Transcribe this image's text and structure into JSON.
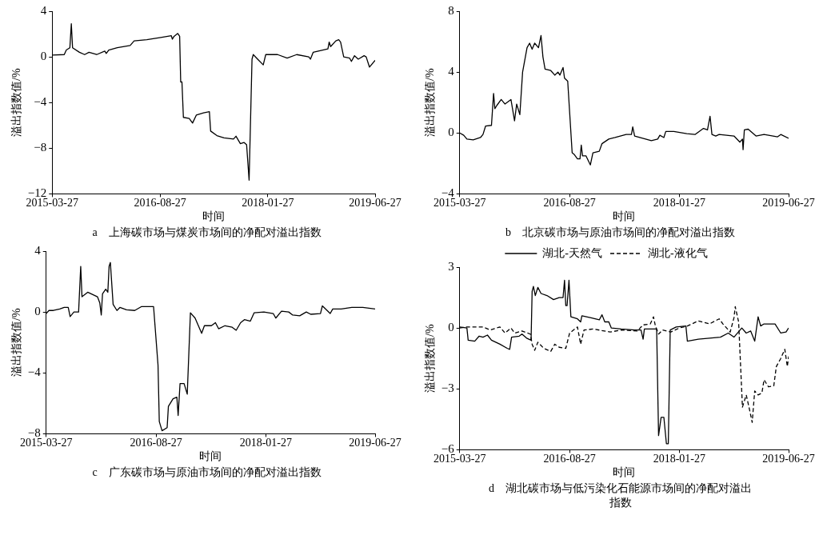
{
  "chart_data": [
    {
      "type": "line",
      "title": "a　上海碳市场与煤炭市场间的净配对溢出指数",
      "xlabel": "时间",
      "ylabel": "溢出指数值/%",
      "xlim": [
        "2015-03-27",
        "2019-06-27"
      ],
      "xticks": [
        "2015-03-27",
        "2016-08-27",
        "2018-01-27",
        "2019-06-27"
      ],
      "ylim": [
        -12,
        4
      ],
      "yticks": [
        -12,
        -8,
        -4,
        0,
        4
      ],
      "marker": "none",
      "series": [
        {
          "color": "#000000",
          "line_style": "solid",
          "x": [
            "2015-03-27",
            "2015-05-24",
            "2015-06-03",
            "2015-06-20",
            "2015-06-27",
            "2015-07-03",
            "2015-08-05",
            "2015-08-30",
            "2015-09-20",
            "2015-10-27",
            "2015-12-05",
            "2015-12-12",
            "2015-12-24",
            "2016-02-03",
            "2016-04-05",
            "2016-04-24",
            "2016-06-24",
            "2016-08-30",
            "2016-10-20",
            "2016-10-25",
            "2016-11-02",
            "2016-11-20",
            "2016-11-29",
            "2016-12-04",
            "2016-12-10",
            "2016-12-17",
            "2017-01-14",
            "2017-01-30",
            "2017-02-17",
            "2017-03-24",
            "2017-04-21",
            "2017-04-27",
            "2017-05-27",
            "2017-06-30",
            "2017-08-15",
            "2017-08-27",
            "2017-09-17",
            "2017-10-05",
            "2017-10-17",
            "2017-10-29",
            "2017-11-12",
            "2017-11-18",
            "2017-12-09",
            "2018-01-05",
            "2018-01-17",
            "2018-03-15",
            "2018-04-30",
            "2018-06-15",
            "2018-08-12",
            "2018-08-20",
            "2018-09-02",
            "2018-10-18",
            "2018-11-12",
            "2018-11-18",
            "2018-11-25",
            "2018-12-20",
            "2019-01-03",
            "2019-01-12",
            "2019-01-27",
            "2019-02-24",
            "2019-03-05",
            "2019-03-20",
            "2019-04-07",
            "2019-05-05",
            "2019-05-15",
            "2019-05-31",
            "2019-06-27"
          ],
          "values": [
            0.15,
            0.2,
            0.6,
            0.8,
            2.9,
            0.8,
            0.4,
            0.2,
            0.4,
            0.2,
            0.5,
            0.3,
            0.6,
            0.8,
            1.0,
            1.4,
            1.5,
            1.7,
            1.85,
            1.55,
            1.8,
            2.05,
            1.8,
            -2.2,
            -2.2,
            -5.3,
            -5.4,
            -5.8,
            -5.1,
            -4.9,
            -4.8,
            -6.5,
            -6.9,
            -7.1,
            -7.2,
            -6.95,
            -7.6,
            -7.5,
            -7.7,
            -10.8,
            -0.2,
            0.2,
            -0.2,
            -0.7,
            0.2,
            0.2,
            -0.1,
            0.2,
            0.0,
            -0.2,
            0.4,
            0.6,
            0.7,
            1.3,
            0.9,
            1.4,
            1.5,
            1.3,
            0.0,
            -0.1,
            -0.4,
            0.1,
            -0.2,
            0.1,
            0.0,
            -0.9,
            -0.3
          ]
        }
      ]
    },
    {
      "type": "line",
      "title": "b　北京碳市场与原油市场间的净配对溢出指数",
      "xlabel": "时间",
      "ylabel": "溢出指数值/%",
      "xlim": [
        "2015-03-27",
        "2019-06-27"
      ],
      "xticks": [
        "2015-03-27",
        "2016-08-27",
        "2018-01-27",
        "2019-06-27"
      ],
      "ylim": [
        -4,
        8
      ],
      "yticks": [
        -4,
        0,
        4,
        8
      ],
      "marker": "none",
      "series": [
        {
          "color": "#000000",
          "line_style": "solid",
          "x": [
            "2015-03-27",
            "2015-04-15",
            "2015-04-30",
            "2015-05-30",
            "2015-07-03",
            "2015-07-15",
            "2015-07-27",
            "2015-08-24",
            "2015-09-03",
            "2015-09-09",
            "2015-09-18",
            "2015-10-09",
            "2015-10-27",
            "2015-11-24",
            "2015-12-11",
            "2015-12-21",
            "2016-01-05",
            "2016-01-18",
            "2016-02-08",
            "2016-02-20",
            "2016-03-03",
            "2016-03-15",
            "2016-04-02",
            "2016-04-14",
            "2016-04-23",
            "2016-05-03",
            "2016-05-30",
            "2016-06-18",
            "2016-07-03",
            "2016-07-12",
            "2016-07-27",
            "2016-08-03",
            "2016-08-18",
            "2016-09-08",
            "2016-09-17",
            "2016-10-03",
            "2016-10-15",
            "2016-10-21",
            "2016-10-27",
            "2016-11-12",
            "2016-12-03",
            "2016-12-15",
            "2017-01-14",
            "2017-01-27",
            "2017-02-28",
            "2017-03-30",
            "2017-05-21",
            "2017-06-15",
            "2017-06-21",
            "2017-06-30",
            "2017-09-17",
            "2017-10-17",
            "2017-10-27",
            "2017-11-15",
            "2017-11-24",
            "2018-01-01",
            "2018-03-03",
            "2018-04-11",
            "2018-05-21",
            "2018-06-09",
            "2018-06-21",
            "2018-06-30",
            "2018-07-18",
            "2018-08-03",
            "2018-10-12",
            "2018-11-09",
            "2018-11-21",
            "2018-11-24",
            "2018-11-30",
            "2018-12-18",
            "2019-01-24",
            "2019-03-03",
            "2019-05-06",
            "2019-05-21",
            "2019-06-27"
          ],
          "values": [
            0.0,
            -0.15,
            -0.4,
            -0.45,
            -0.3,
            -0.1,
            0.45,
            0.5,
            2.6,
            1.6,
            1.8,
            2.2,
            1.9,
            2.2,
            0.8,
            1.9,
            1.2,
            4.0,
            5.6,
            5.9,
            5.5,
            5.9,
            5.6,
            6.4,
            5.0,
            4.2,
            4.1,
            3.8,
            4.0,
            3.8,
            4.3,
            3.6,
            3.4,
            -1.3,
            -1.4,
            -1.7,
            -1.7,
            -0.8,
            -1.5,
            -1.5,
            -2.1,
            -1.3,
            -1.2,
            -0.7,
            -0.4,
            -0.3,
            -0.1,
            -0.1,
            0.4,
            -0.2,
            -0.5,
            -0.4,
            -0.15,
            -0.3,
            0.1,
            0.1,
            -0.05,
            -0.1,
            0.3,
            0.2,
            1.1,
            -0.1,
            -0.2,
            -0.1,
            -0.2,
            -0.6,
            -0.4,
            -1.1,
            0.2,
            0.25,
            -0.2,
            -0.1,
            -0.25,
            -0.1,
            -0.35
          ]
        }
      ]
    },
    {
      "type": "line",
      "title": "c　广东碳市场与原油市场间的净配对溢出指数",
      "xlabel": "时间",
      "ylabel": "溢出指数值/%",
      "xlim": [
        "2015-03-27",
        "2019-06-27"
      ],
      "xticks": [
        "2015-03-27",
        "2016-08-27",
        "2018-01-27",
        "2019-06-27"
      ],
      "ylim": [
        -8,
        4
      ],
      "yticks": [
        -8,
        -4,
        0,
        4
      ],
      "marker": "none",
      "series": [
        {
          "color": "#000000",
          "line_style": "solid",
          "x": [
            "2015-03-27",
            "2015-04-09",
            "2015-04-30",
            "2015-05-30",
            "2015-06-20",
            "2015-07-09",
            "2015-07-18",
            "2015-08-05",
            "2015-08-27",
            "2015-09-06",
            "2015-09-12",
            "2015-10-09",
            "2015-11-24",
            "2015-12-05",
            "2015-12-12",
            "2015-12-18",
            "2016-01-02",
            "2016-01-12",
            "2016-01-18",
            "2016-01-24",
            "2016-02-06",
            "2016-02-24",
            "2016-03-09",
            "2016-04-09",
            "2016-05-18",
            "2016-06-18",
            "2016-08-15",
            "2016-09-05",
            "2016-09-11",
            "2016-09-24",
            "2016-10-18",
            "2016-10-24",
            "2016-11-15",
            "2016-12-03",
            "2016-12-09",
            "2016-12-18",
            "2017-01-06",
            "2017-01-21",
            "2017-02-05",
            "2017-02-27",
            "2017-03-30",
            "2017-04-12",
            "2017-05-15",
            "2017-06-03",
            "2017-06-18",
            "2017-07-18",
            "2017-08-21",
            "2017-09-09",
            "2017-09-30",
            "2017-10-18",
            "2017-11-15",
            "2017-12-03",
            "2018-01-18",
            "2018-03-03",
            "2018-03-15",
            "2018-04-11",
            "2018-05-15",
            "2018-06-03",
            "2018-07-06",
            "2018-08-06",
            "2018-08-27",
            "2018-10-12",
            "2018-10-21",
            "2018-11-27",
            "2018-12-09",
            "2019-01-18",
            "2019-03-09",
            "2019-04-30",
            "2019-06-27"
          ],
          "values": [
            -0.1,
            0.1,
            0.1,
            0.2,
            0.3,
            0.3,
            -0.3,
            0.0,
            0.0,
            3.0,
            1.0,
            1.3,
            1.0,
            0.6,
            -0.2,
            1.2,
            1.5,
            1.3,
            3.0,
            3.25,
            0.5,
            0.1,
            0.3,
            0.15,
            0.1,
            0.35,
            0.35,
            -3.5,
            -7.2,
            -7.8,
            -7.6,
            -6.2,
            -5.7,
            -5.6,
            -6.8,
            -4.7,
            -4.7,
            -5.4,
            -0.05,
            -0.4,
            -1.4,
            -0.9,
            -0.9,
            -0.7,
            -1.1,
            -0.9,
            -1.0,
            -1.2,
            -0.7,
            -0.5,
            -0.6,
            -0.05,
            0.0,
            -0.1,
            -0.4,
            0.05,
            0.0,
            -0.2,
            -0.25,
            0.0,
            -0.15,
            -0.1,
            0.4,
            -0.1,
            0.2,
            0.2,
            0.3,
            0.3,
            0.2
          ]
        }
      ]
    },
    {
      "type": "line",
      "title": "d　湖北碳市场与低污染化石能源市场间的净配对溢出指数",
      "xlabel": "时间",
      "ylabel": "溢出指数值/%",
      "xlim": [
        "2015-03-27",
        "2019-06-27"
      ],
      "xticks": [
        "2015-03-27",
        "2016-08-27",
        "2018-01-27",
        "2019-06-27"
      ],
      "ylim": [
        -6,
        3
      ],
      "yticks": [
        -6,
        -3,
        0,
        3
      ],
      "marker": "none",
      "legend": "top",
      "series": [
        {
          "name": "湖北-天然气",
          "color": "#000000",
          "line_style": "solid",
          "x": [
            "2015-03-27",
            "2015-04-30",
            "2015-05-06",
            "2015-06-06",
            "2015-06-27",
            "2015-07-15",
            "2015-08-05",
            "2015-08-24",
            "2015-10-03",
            "2015-11-06",
            "2015-11-18",
            "2015-11-27",
            "2016-01-02",
            "2016-01-15",
            "2016-02-06",
            "2016-02-27",
            "2016-03-03",
            "2016-03-09",
            "2016-03-18",
            "2016-03-30",
            "2016-04-14",
            "2016-05-12",
            "2016-06-12",
            "2016-07-09",
            "2016-07-27",
            "2016-08-03",
            "2016-08-09",
            "2016-08-15",
            "2016-08-24",
            "2016-09-02",
            "2016-10-03",
            "2016-10-18",
            "2016-10-24",
            "2016-12-06",
            "2017-01-14",
            "2017-01-27",
            "2017-02-09",
            "2017-02-28",
            "2017-03-12",
            "2017-04-27",
            "2017-06-30",
            "2017-07-30",
            "2017-08-09",
            "2017-08-15",
            "2017-09-24",
            "2017-10-12",
            "2017-10-21",
            "2017-11-02",
            "2017-11-15",
            "2017-11-27",
            "2017-12-06",
            "2017-12-15",
            "2018-01-12",
            "2018-02-27",
            "2018-03-06",
            "2018-04-27",
            "2018-06-18",
            "2018-08-09",
            "2018-09-15",
            "2018-10-12",
            "2018-11-18",
            "2018-12-09",
            "2018-12-30",
            "2019-01-18",
            "2019-02-03",
            "2019-02-15",
            "2019-03-03",
            "2019-04-24",
            "2019-05-21",
            "2019-06-15",
            "2019-06-27"
          ],
          "values": [
            0.05,
            0.0,
            -0.6,
            -0.65,
            -0.4,
            -0.45,
            -0.35,
            -0.6,
            -0.8,
            -1.0,
            -1.05,
            -0.45,
            -0.4,
            -0.3,
            -0.5,
            -0.6,
            1.8,
            2.05,
            1.6,
            2.0,
            1.7,
            1.6,
            1.4,
            1.5,
            1.5,
            2.35,
            1.1,
            1.1,
            2.35,
            0.55,
            0.45,
            0.3,
            0.6,
            0.5,
            0.4,
            0.65,
            0.3,
            0.3,
            0.0,
            -0.05,
            -0.1,
            -0.1,
            -0.55,
            -0.05,
            -0.05,
            -0.05,
            -5.3,
            -4.4,
            -4.4,
            -5.7,
            -5.7,
            -0.1,
            0.05,
            0.1,
            -0.65,
            -0.55,
            -0.5,
            -0.45,
            -0.25,
            -0.45,
            0.0,
            -0.25,
            -0.15,
            -0.65,
            0.55,
            0.1,
            0.2,
            0.2,
            -0.25,
            -0.2,
            0.0
          ]
        },
        {
          "name": "湖北-液化气",
          "color": "#000000",
          "line_style": "dashed",
          "x": [
            "2015-03-27",
            "2015-04-24",
            "2015-07-15",
            "2015-08-18",
            "2015-10-03",
            "2015-10-27",
            "2015-11-24",
            "2015-12-12",
            "2016-01-15",
            "2016-02-24",
            "2016-03-03",
            "2016-03-15",
            "2016-03-30",
            "2016-04-27",
            "2016-05-30",
            "2016-06-18",
            "2016-07-09",
            "2016-08-09",
            "2016-08-27",
            "2016-10-03",
            "2016-10-18",
            "2016-11-03",
            "2016-12-18",
            "2017-03-06",
            "2017-04-27",
            "2017-07-12",
            "2017-08-09",
            "2017-09-12",
            "2017-09-27",
            "2017-10-06",
            "2017-10-21",
            "2017-11-09",
            "2017-12-18",
            "2018-01-27",
            "2018-03-06",
            "2018-04-27",
            "2018-06-18",
            "2018-08-03",
            "2018-08-21",
            "2018-09-24",
            "2018-10-12",
            "2018-10-18",
            "2018-11-03",
            "2018-11-21",
            "2018-12-09",
            "2018-12-24",
            "2019-01-06",
            "2019-01-18",
            "2019-02-03",
            "2019-02-21",
            "2019-03-03",
            "2019-03-24",
            "2019-04-18",
            "2019-04-30",
            "2019-05-21",
            "2019-06-09",
            "2019-06-21",
            "2019-06-27"
          ],
          "values": [
            0.0,
            0.05,
            0.05,
            -0.1,
            0.05,
            -0.25,
            0.0,
            -0.25,
            -0.15,
            -0.3,
            -0.8,
            -1.1,
            -0.7,
            -1.0,
            -1.15,
            -0.8,
            -0.95,
            -1.0,
            -0.25,
            0.05,
            -0.8,
            -0.1,
            -0.05,
            -0.2,
            -0.1,
            -0.15,
            0.15,
            0.2,
            0.55,
            0.1,
            -0.3,
            -0.1,
            -0.2,
            0.0,
            0.1,
            0.35,
            0.2,
            0.45,
            0.2,
            -0.2,
            0.5,
            1.05,
            0.3,
            -3.9,
            -3.3,
            -4.0,
            -4.65,
            -3.1,
            -3.3,
            -3.2,
            -2.55,
            -2.9,
            -2.85,
            -1.9,
            -1.5,
            -1.05,
            -1.9,
            -1.4
          ]
        }
      ]
    }
  ]
}
